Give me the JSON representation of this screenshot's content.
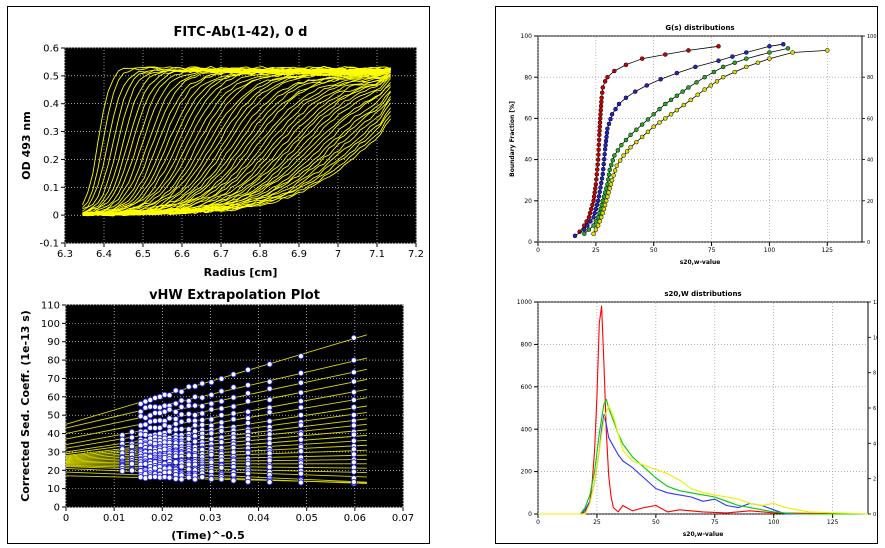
{
  "chart_data": [
    {
      "type": "line",
      "title": "FITC-Ab(1-42), 0 d",
      "xlabel": "Radius [cm]",
      "ylabel": "OD 493 nm",
      "xlim": [
        6.3,
        7.2
      ],
      "ylim": [
        -0.1,
        0.6
      ],
      "xticks": [
        "6.3",
        "6.4",
        "6.5",
        "6.6",
        "6.7",
        "6.8",
        "6.9",
        "7",
        "7.1",
        "7.2"
      ],
      "yticks": [
        "-0.1",
        "0",
        "0.1",
        "0.2",
        "0.3",
        "0.4",
        "0.5",
        "0.6"
      ],
      "grid": true,
      "background": "#000000",
      "series_color": "#ffff00",
      "meniscus": 6.345,
      "bottom": 7.135,
      "baseline": 0.0,
      "plateau": 0.52,
      "scan_count": 55
    },
    {
      "type": "scatter",
      "title": "vHW Extrapolation Plot",
      "xlabel": "(Time)^-0.5",
      "ylabel": "Corrected Sed. Coeff. (1e-13 s)",
      "xlim": [
        0,
        0.07
      ],
      "ylim": [
        0,
        110
      ],
      "xticks": [
        "0",
        "0.01",
        "0.02",
        "0.03",
        "0.04",
        "0.05",
        "0.06",
        "0.07"
      ],
      "yticks": [
        "0",
        "10",
        "20",
        "30",
        "40",
        "50",
        "60",
        "70",
        "80",
        "90",
        "100",
        "110"
      ],
      "grid": true,
      "background": "#000000",
      "point_color": "#ffffff",
      "point_edge_color": "#2222dd",
      "line_color": "#d8d800",
      "scan_x": [
        0.0117,
        0.0137,
        0.0155,
        0.0165,
        0.0175,
        0.0185,
        0.0195,
        0.0205,
        0.0215,
        0.0228,
        0.024,
        0.0255,
        0.0268,
        0.0283,
        0.0302,
        0.0323,
        0.0348,
        0.0378,
        0.0423,
        0.0488,
        0.0598
      ],
      "lines": [
        {
          "intercept": 45,
          "slope": 780
        },
        {
          "intercept": 43,
          "slope": 610
        },
        {
          "intercept": 40,
          "slope": 560
        },
        {
          "intercept": 37,
          "slope": 520
        },
        {
          "intercept": 34,
          "slope": 480
        },
        {
          "intercept": 32,
          "slope": 440
        },
        {
          "intercept": 30,
          "slope": 400
        },
        {
          "intercept": 29,
          "slope": 360
        },
        {
          "intercept": 28,
          "slope": 320
        },
        {
          "intercept": 27.5,
          "slope": 280
        },
        {
          "intercept": 27,
          "slope": 240
        },
        {
          "intercept": 26.5,
          "slope": 200
        },
        {
          "intercept": 26,
          "slope": 165
        },
        {
          "intercept": 25.5,
          "slope": 130
        },
        {
          "intercept": 25,
          "slope": 95
        },
        {
          "intercept": 24.5,
          "slope": 60
        },
        {
          "intercept": 24,
          "slope": 30
        },
        {
          "intercept": 23.5,
          "slope": 0
        },
        {
          "intercept": 23,
          "slope": -30
        },
        {
          "intercept": 22.5,
          "slope": -60
        },
        {
          "intercept": 22,
          "slope": -90
        },
        {
          "intercept": 21,
          "slope": -120
        },
        {
          "intercept": 19,
          "slope": -100
        },
        {
          "intercept": 17,
          "slope": -60
        }
      ]
    },
    {
      "type": "line",
      "title": "G(s) distributions",
      "xlabel": "s20,w-value",
      "ylabel": "Boundary Fraction [%]",
      "xlim": [
        0,
        140
      ],
      "ylim": [
        0,
        100
      ],
      "xticks": [
        "0",
        "25",
        "50",
        "75",
        "100",
        "125"
      ],
      "yticks": [
        "0",
        "20",
        "40",
        "60",
        "80",
        "100"
      ],
      "grid": true,
      "series": [
        {
          "color": "#cc0000",
          "x": [
            18,
            20,
            22,
            24,
            25,
            26,
            26.5,
            27,
            27.5,
            28,
            29,
            30,
            33,
            38,
            45,
            55,
            65,
            78
          ],
          "y": [
            5,
            8,
            12,
            20,
            28,
            40,
            52,
            62,
            70,
            75,
            78,
            80,
            83,
            86,
            89,
            91,
            93,
            95
          ]
        },
        {
          "color": "#2222cc",
          "x": [
            16,
            20,
            24,
            26,
            28,
            29,
            30,
            32,
            35,
            38,
            42,
            47,
            53,
            60,
            68,
            78,
            90,
            100,
            106
          ],
          "y": [
            3,
            6,
            12,
            20,
            33,
            45,
            55,
            62,
            67,
            70,
            73,
            76,
            79,
            82,
            85,
            88,
            92,
            95,
            96
          ]
        },
        {
          "color": "#22aa22",
          "x": [
            20,
            24,
            26,
            28,
            30,
            31,
            33,
            36,
            40,
            45,
            50,
            55,
            60,
            65,
            72,
            80,
            90,
            100,
            108
          ],
          "y": [
            4,
            8,
            12,
            20,
            28,
            35,
            42,
            47,
            52,
            57,
            62,
            67,
            71,
            75,
            80,
            85,
            89,
            92,
            94
          ]
        },
        {
          "color": "#dddd00",
          "x": [
            24,
            26,
            28,
            30,
            32,
            34,
            37,
            40,
            45,
            50,
            55,
            60,
            66,
            72,
            80,
            90,
            100,
            110,
            125
          ],
          "y": [
            4,
            8,
            14,
            22,
            30,
            37,
            42,
            46,
            51,
            56,
            60,
            64,
            69,
            74,
            80,
            85,
            89,
            92,
            93
          ]
        }
      ]
    },
    {
      "type": "line",
      "title": "s20,W distributions",
      "xlabel": "s20,w-value",
      "xlim": [
        0,
        140
      ],
      "ylim": [
        0,
        1000
      ],
      "y2lim": [
        0,
        12
      ],
      "xticks": [
        "0",
        "25",
        "50",
        "75",
        "100",
        "125"
      ],
      "yticks": [
        "0",
        "200",
        "400",
        "600",
        "800",
        "1000"
      ],
      "y2ticks": [
        "0",
        "2",
        "4",
        "6",
        "8",
        "10",
        "12"
      ],
      "grid": true,
      "series": [
        {
          "color": "#ff0000",
          "x": [
            0,
            18,
            20,
            22,
            23,
            24,
            25,
            26,
            27,
            28,
            29,
            30,
            31,
            32,
            34,
            36,
            40,
            45,
            50,
            55,
            60,
            70,
            80,
            90,
            100,
            140
          ],
          "y": [
            0,
            0,
            10,
            60,
            150,
            300,
            550,
            900,
            980,
            700,
            380,
            180,
            80,
            30,
            10,
            40,
            15,
            30,
            40,
            10,
            20,
            10,
            5,
            15,
            5,
            0
          ]
        },
        {
          "color": "#3333ff",
          "x": [
            0,
            18,
            20,
            22,
            24,
            26,
            27,
            28,
            29,
            30,
            32,
            34,
            36,
            40,
            45,
            50,
            55,
            60,
            65,
            70,
            75,
            80,
            85,
            90,
            95,
            100,
            105,
            140
          ],
          "y": [
            0,
            0,
            20,
            60,
            150,
            300,
            400,
            470,
            420,
            360,
            320,
            280,
            250,
            220,
            170,
            120,
            100,
            90,
            80,
            60,
            70,
            40,
            30,
            50,
            40,
            20,
            0,
            0
          ]
        },
        {
          "color": "#00cc00",
          "x": [
            0,
            18,
            20,
            22,
            24,
            26,
            28,
            29,
            30,
            32,
            34,
            36,
            40,
            45,
            50,
            55,
            60,
            65,
            70,
            75,
            80,
            85,
            90,
            95,
            100,
            110,
            140
          ],
          "y": [
            0,
            0,
            30,
            90,
            200,
            380,
            520,
            540,
            500,
            440,
            380,
            330,
            270,
            220,
            170,
            130,
            110,
            100,
            90,
            80,
            60,
            40,
            30,
            20,
            10,
            0,
            0
          ]
        },
        {
          "color": "#eeee00",
          "x": [
            0,
            20,
            22,
            24,
            26,
            28,
            30,
            32,
            34,
            36,
            40,
            45,
            50,
            55,
            60,
            65,
            70,
            75,
            80,
            85,
            90,
            95,
            100,
            105,
            110,
            115,
            140
          ],
          "y": [
            0,
            0,
            50,
            150,
            300,
            450,
            510,
            460,
            380,
            300,
            250,
            230,
            210,
            190,
            160,
            120,
            100,
            90,
            80,
            70,
            50,
            40,
            50,
            30,
            20,
            10,
            0
          ]
        }
      ]
    }
  ]
}
